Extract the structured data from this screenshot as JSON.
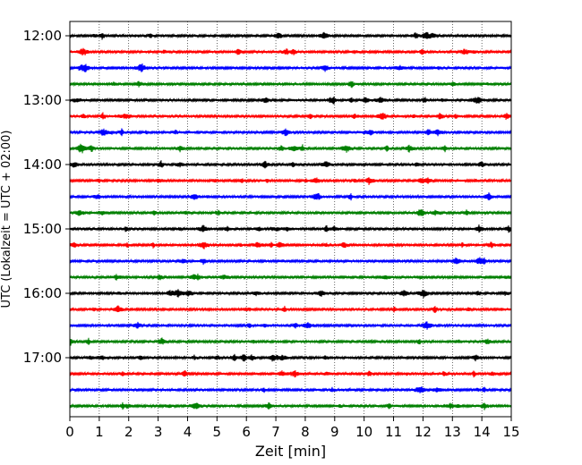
{
  "chart_data": {
    "type": "line",
    "xlabel": "Zeit  [min]",
    "ylabel": "UTC (Lokalzeit = UTC + 02:00)",
    "xlim": [
      0,
      15
    ],
    "x_ticks": [
      "0",
      "1",
      "2",
      "3",
      "4",
      "5",
      "6",
      "7",
      "8",
      "9",
      "10",
      "11",
      "12",
      "13",
      "14",
      "15"
    ],
    "y_tick_labels": [
      "12:00",
      "13:00",
      "14:00",
      "15:00",
      "16:00",
      "17:00"
    ],
    "grid_x": true,
    "trace_colors": [
      "#000000",
      "#ff0000",
      "#0000ff",
      "#008000"
    ],
    "traces": [
      {
        "start": "12:00"
      },
      {
        "start": "12:15"
      },
      {
        "start": "12:30"
      },
      {
        "start": "12:45"
      },
      {
        "start": "13:00"
      },
      {
        "start": "13:15"
      },
      {
        "start": "13:30"
      },
      {
        "start": "13:45"
      },
      {
        "start": "14:00"
      },
      {
        "start": "14:15"
      },
      {
        "start": "14:30"
      },
      {
        "start": "14:45"
      },
      {
        "start": "15:00"
      },
      {
        "start": "15:15"
      },
      {
        "start": "15:30"
      },
      {
        "start": "15:45"
      },
      {
        "start": "16:00"
      },
      {
        "start": "16:15"
      },
      {
        "start": "16:30"
      },
      {
        "start": "16:45"
      },
      {
        "start": "17:00"
      },
      {
        "start": "17:15"
      },
      {
        "start": "17:30"
      },
      {
        "start": "17:45"
      }
    ]
  }
}
